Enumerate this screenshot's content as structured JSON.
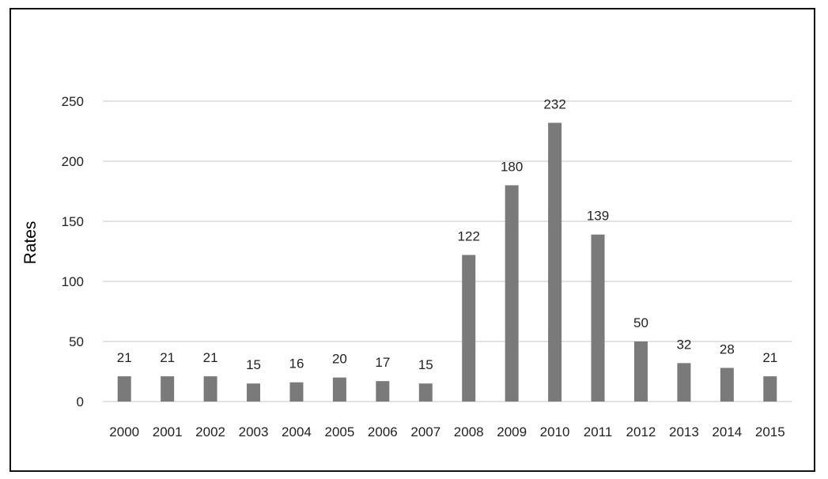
{
  "chart_data": {
    "type": "bar",
    "categories": [
      "2000",
      "2001",
      "2002",
      "2003",
      "2004",
      "2005",
      "2006",
      "2007",
      "2008",
      "2009",
      "2010",
      "2011",
      "2012",
      "2013",
      "2014",
      "2015"
    ],
    "values": [
      21,
      21,
      21,
      15,
      16,
      20,
      17,
      15,
      122,
      180,
      232,
      139,
      50,
      32,
      28,
      21
    ],
    "ylabel": "Rates",
    "ylim": [
      0,
      250
    ],
    "yticks": [
      0,
      50,
      100,
      150,
      200,
      250
    ],
    "grid": true,
    "data_labels": true,
    "legend": "none",
    "bar_color": "#7a7a7a",
    "grid_color": "#d9d9d9"
  }
}
